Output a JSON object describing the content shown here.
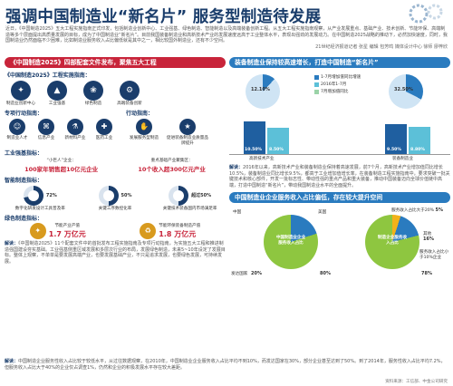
{
  "header": {
    "title": "强调中国制造业“新名片” 服务型制造待发展",
    "intro": "近日，《中国制造2025》五大工程实施指南正式印发，包括制造业创新中心、工业强基、绿色制造、智能制造以及高端装备创新工程。从五大工程实施指南观察，从产业发展重点、基础产业、技术创新、节能环保、高端制造等多个层面提出高质量发展的目标，成为了中国制造业“新名片”。目前我国装备制造业和高新技术产业的发展速度远高于工业整体水平，表现出强劲的发展动力。在中国制造2025战略的推动下，必然加快速度，同时，我国制造业仍然面临不少困难，比如制造业服务收入占比偏低就是其中之一，相比较国外制造业，还有不少空间。",
    "byline": "21世纪经济报道记者 张星 编辑 包芳鸣 媒体设计中心 徐师 廖梓欣"
  },
  "left": {
    "banner": "《中国制造2025》四部配套文件发布，聚焦五大工程",
    "s1_title": "《中国制造2025》工程实施指南：",
    "s1_items": [
      "制造业创新中心",
      "工业强基",
      "绿色制造",
      "高端装备创新"
    ],
    "s2_title": "专项行动指南：",
    "s2_items": [
      "制造业人才",
      "信息产业",
      "新材料产业",
      "医药工业"
    ],
    "s3_title": "行动指南：",
    "s3_items": [
      "发展服务型制造",
      "促进装备制造业质量品牌提升"
    ],
    "s4_title": "工业强基指标：",
    "s4_a_label": "“小巨人”企业：",
    "s4_a_value": "100家年销售超10亿元企业",
    "s4_b_label": "重点基础产业聚集区：",
    "s4_b_value": "10个收入超300亿元产业",
    "s5_title": "智能制造指标：",
    "s5_items": [
      {
        "pct": "72%",
        "label": "数字化研发设计工具普及率",
        "value": 72
      },
      {
        "pct": "50%",
        "label": "关键工序数控化率",
        "value": 50
      },
      {
        "pct": "超过50%",
        "label": "关键技术装备国内市场满足率",
        "value": 50
      }
    ],
    "s6_title": "绿色制造指标：",
    "s6_items": [
      {
        "num": "1.7 万亿元",
        "label": "节能产业产值"
      },
      {
        "num": "1.8 万亿元",
        "label": "节能环保装备制造产值"
      }
    ],
    "note_head": "解读：",
    "note": "《中国制造2025》11个配套文件中的首批发布工程实施指南及专项行动指南，为实施五大工程和推进制造强国建设夯实基础。工业强基侧重区域发展和多层次行业的布局，发展绿色制造，未来5~10年设定了发展目标。整体上观察，不单单是要发展高端产业，也要发展基础产业，不只是追求发展，也要绿色发展，可持续发展。"
  },
  "right": {
    "banner": "装备制造业保持较高速增长，打造中国制造“新名片”",
    "legend": [
      "1-7月增加值同比增速",
      "2016年1-7月",
      "7月增加值同比"
    ],
    "pie_left": {
      "label": "12.10%",
      "value": 12.1
    },
    "pie_right": {
      "label": "32.50%",
      "value": 32.5
    },
    "bars": {
      "categories": [
        "高新技术产业",
        "装备制造业"
      ],
      "values": [
        [
          10.5,
          8.5
        ],
        [
          9.5,
          8.8
        ]
      ],
      "labels": [
        [
          "10.50%",
          "8.50%"
        ],
        [
          "9.50%",
          "8.80%"
        ]
      ]
    },
    "note_head": "解读：",
    "note": "2016年以来，高新技术产业和装备制造业保持着高速发展，前7个月，高新技术产业增加值同比增长10.5%，装备制造业同比增长9.5%，都高于工业增加值增长率，在装备制造工程实施指南中，要求突破一批关键技术和核心部件，开发一批标志性、带动性强的重点产品和重大装备，推动中国装备迈向全球价值链中高端，打造中国制造“新名片”，带动我国制造业水平的全面提升。",
    "banner2": "中国制造业企业服务收入占比偏低，存在较大提升空间",
    "pie2_left": {
      "title": "中国制造业企业服务收入占比",
      "a": "中国",
      "b": "美国",
      "c": "发达国家",
      "c_pct": "20%",
      "low_pct": "80%"
    },
    "pie2_right": {
      "title": "制造企业服务收入占比",
      "a": "服务收入占比大于20%",
      "b": "其他",
      "c": "服务收入占比小于10%企业",
      "a_pct": "5%",
      "b_pct": "16%",
      "c_pct": "78%"
    }
  },
  "footer": {
    "note_head": "解读：",
    "note": "中国制造企业服务性收入占比较于较低水平，从过往数据观察，在2010年，中国制造业企业服务收入占比平均不到10%，而发达国家在30%，部分企业甚至达到了50%。到了2014年，服务性收入占比平均7.2%，但服务收入占比大于40%的企业仅占调查1%，仍然和企业的积极发展水平存在较大差距。",
    "source": "资料来源：工信部、中金公司研究"
  }
}
